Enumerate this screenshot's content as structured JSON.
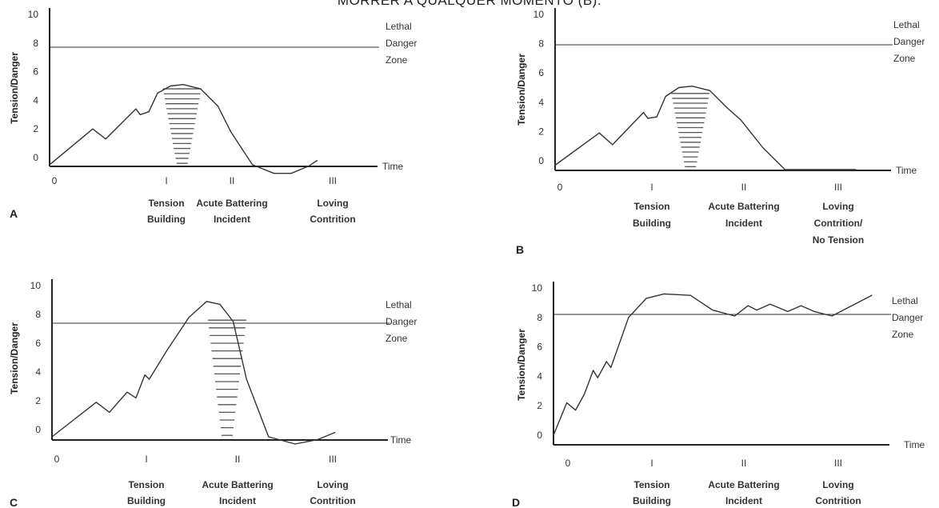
{
  "page_title": "MORRER A QUALQUER MOMENTO (B).",
  "chart_data": [
    {
      "panel": "A",
      "type": "line",
      "ylabel": "Tension/Danger",
      "xlabel": "Time",
      "yticks": [
        "0",
        "2",
        "4",
        "6",
        "8",
        "10"
      ],
      "xticks": [
        "0",
        "I",
        "II",
        "III"
      ],
      "phase_labels": [
        [
          "Tension",
          "Building"
        ],
        [
          "Acute Battering",
          "Incident"
        ],
        [
          "Loving",
          "Contrition"
        ]
      ],
      "zone_label": [
        "Lethal",
        "Danger",
        "Zone"
      ],
      "lethal_level": 7.8,
      "ylim": [
        -0.5,
        10.5
      ],
      "xlim": [
        0,
        3.8
      ],
      "x": [
        0,
        0.5,
        0.65,
        1.0,
        1.05,
        1.15,
        1.25,
        1.4,
        1.55,
        1.75,
        1.95,
        2.1,
        2.35,
        2.6,
        2.8,
        3.0,
        3.1
      ],
      "y": [
        -0.5,
        2.0,
        1.3,
        3.4,
        3.0,
        3.2,
        4.5,
        5.0,
        5.1,
        4.8,
        3.6,
        1.8,
        -0.5,
        -1.1,
        -1.1,
        -0.6,
        -0.2
      ],
      "hatch_x": 1.35,
      "hatch_range": [
        -0.4,
        4.8
      ]
    },
    {
      "panel": "B",
      "type": "line",
      "ylabel": "Tension/Danger",
      "xlabel": "Time",
      "yticks": [
        "0",
        "2",
        "4",
        "6",
        "8",
        "10"
      ],
      "xticks": [
        "0",
        "I",
        "II",
        "III"
      ],
      "phase_labels": [
        [
          "Tension",
          "Building"
        ],
        [
          "Acute Battering",
          "Incident"
        ],
        [
          "Loving",
          "Contrition/",
          "No Tension"
        ]
      ],
      "zone_label": [
        "Lethal",
        "Danger",
        "Zone"
      ],
      "lethal_level": 8.0,
      "ylim": [
        -0.5,
        10.5
      ],
      "xlim": [
        0,
        3.8
      ],
      "x": [
        0,
        0.5,
        0.65,
        1.0,
        1.05,
        1.15,
        1.25,
        1.4,
        1.55,
        1.75,
        1.95,
        2.1,
        2.35,
        2.6,
        3.4
      ],
      "y": [
        -0.3,
        1.9,
        1.1,
        3.3,
        2.9,
        3.0,
        4.4,
        5.0,
        5.1,
        4.8,
        3.6,
        2.8,
        0.9,
        -0.6,
        -0.6
      ],
      "hatch_x": 1.35,
      "hatch_range": [
        -0.4,
        4.6
      ]
    },
    {
      "panel": "C",
      "type": "line",
      "ylabel": "Tension/Danger",
      "xlabel": "Time",
      "yticks": [
        "0",
        "2",
        "4",
        "6",
        "8",
        "10"
      ],
      "xticks": [
        "0",
        "I",
        "II",
        "III"
      ],
      "phase_labels": [
        [
          "Tension",
          "Building"
        ],
        [
          "Acute Battering",
          "Incident"
        ],
        [
          "Loving",
          "Contrition"
        ]
      ],
      "zone_label": [
        "Lethal",
        "Danger",
        "Zone"
      ],
      "lethal_level": 7.7,
      "ylim": [
        -0.5,
        10.5
      ],
      "xlim": [
        0,
        3.8
      ],
      "x": [
        0,
        0.5,
        0.65,
        0.85,
        0.95,
        1.05,
        1.1,
        1.3,
        1.55,
        1.75,
        1.9,
        2.05,
        2.2,
        2.45,
        2.75,
        3.0,
        3.2
      ],
      "y": [
        -0.5,
        1.9,
        1.2,
        2.6,
        2.2,
        3.8,
        3.5,
        5.5,
        7.8,
        8.9,
        8.7,
        7.5,
        3.5,
        -0.5,
        -1.0,
        -0.7,
        -0.2
      ],
      "hatch_x": 1.8,
      "hatch_range": [
        -0.4,
        7.6
      ]
    },
    {
      "panel": "D",
      "type": "line",
      "ylabel": "Tension/Danger",
      "xlabel": "Time",
      "yticks": [
        "0",
        "2",
        "4",
        "6",
        "8",
        "10"
      ],
      "xticks": [
        "0",
        "I",
        "II",
        "III"
      ],
      "phase_labels": [
        [
          "Tension",
          "Building"
        ],
        [
          "Acute Battering",
          "Incident"
        ],
        [
          "Loving",
          "Contrition"
        ]
      ],
      "zone_label": [
        "Lethal",
        "Danger",
        "Zone"
      ],
      "lethal_level": 8.1,
      "ylim": [
        -0.5,
        10.5
      ],
      "xlim": [
        0,
        3.8
      ],
      "x": [
        0,
        0.15,
        0.25,
        0.35,
        0.45,
        0.5,
        0.6,
        0.65,
        0.85,
        1.05,
        1.25,
        1.55,
        1.8,
        2.05,
        2.2,
        2.3,
        2.45,
        2.65,
        2.8,
        2.95,
        3.15,
        3.6
      ],
      "y": [
        0,
        2.2,
        1.7,
        2.8,
        4.4,
        3.9,
        5.0,
        4.6,
        8.0,
        9.3,
        9.6,
        9.5,
        8.5,
        8.1,
        8.8,
        8.5,
        8.9,
        8.4,
        8.8,
        8.4,
        8.1,
        9.5
      ]
    }
  ],
  "panel_letters": [
    "A",
    "B",
    "C",
    "D"
  ]
}
